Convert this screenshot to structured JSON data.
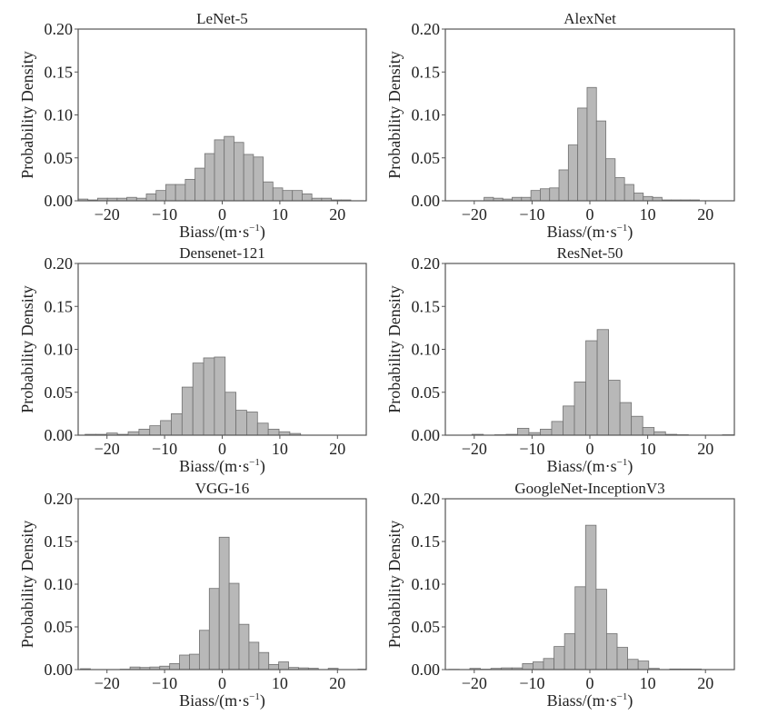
{
  "chart_data": [
    {
      "type": "bar",
      "title": "LeNet-5",
      "xlabel": "Biass/(m·s⁻¹)",
      "xlabel_base": "Biass/(m·s",
      "xlabel_sup": "−1",
      "xlabel_close": ")",
      "ylabel": "Probability Density",
      "xlim": [
        -25,
        25
      ],
      "ylim": [
        0,
        0.2
      ],
      "xticks": [
        -20,
        -10,
        0,
        10,
        20
      ],
      "xtick_labels": [
        "−20",
        "−10",
        "0",
        "10",
        "20"
      ],
      "yticks": [
        0,
        0.05,
        0.1,
        0.15,
        0.2
      ],
      "ytick_labels": [
        "0.00",
        "0.05",
        "0.10",
        "0.15",
        "0.20"
      ],
      "bin_start": -25.0,
      "bin_width": 1.69,
      "values": [
        0.002,
        0.001,
        0.003,
        0.003,
        0.003,
        0.004,
        0.003,
        0.008,
        0.012,
        0.019,
        0.019,
        0.025,
        0.038,
        0.055,
        0.071,
        0.075,
        0.068,
        0.054,
        0.051,
        0.022,
        0.015,
        0.012,
        0.012,
        0.008,
        0.003,
        0.003,
        0.001,
        0.001
      ]
    },
    {
      "type": "bar",
      "title": "AlexNet",
      "xlabel": "Biass/(m·s⁻¹)",
      "xlabel_base": "Biass/(m·s",
      "xlabel_sup": "−1",
      "xlabel_close": ")",
      "ylabel": "Probability Density",
      "xlim": [
        -25,
        25
      ],
      "ylim": [
        0,
        0.2
      ],
      "xticks": [
        -20,
        -10,
        0,
        10,
        20
      ],
      "xtick_labels": [
        "−20",
        "−10",
        "0",
        "10",
        "20"
      ],
      "yticks": [
        0,
        0.05,
        0.1,
        0.15,
        0.2
      ],
      "ytick_labels": [
        "0.00",
        "0.05",
        "0.10",
        "0.15",
        "0.20"
      ],
      "bin_start": -18.3,
      "bin_width": 1.62,
      "values": [
        0.004,
        0.003,
        0.002,
        0.004,
        0.004,
        0.012,
        0.014,
        0.015,
        0.036,
        0.065,
        0.108,
        0.132,
        0.093,
        0.049,
        0.027,
        0.019,
        0.009,
        0.005,
        0.004,
        0.001,
        0.001,
        0.001,
        0.001
      ]
    },
    {
      "type": "bar",
      "title": "Densenet-121",
      "xlabel": "Biass/(m·s⁻¹)",
      "xlabel_base": "Biass/(m·s",
      "xlabel_sup": "−1",
      "xlabel_close": ")",
      "ylabel": "Probability Density",
      "xlim": [
        -25,
        25
      ],
      "ylim": [
        0,
        0.2
      ],
      "xticks": [
        -20,
        -10,
        0,
        10,
        20
      ],
      "xtick_labels": [
        "−20",
        "−10",
        "0",
        "10",
        "20"
      ],
      "yticks": [
        0,
        0.05,
        0.1,
        0.15,
        0.2
      ],
      "ytick_labels": [
        "0.00",
        "0.05",
        "0.10",
        "0.15",
        "0.20"
      ],
      "bin_start": -23.8,
      "bin_width": 1.87,
      "values": [
        0.001,
        0.001,
        0.0025,
        0.001,
        0.004,
        0.007,
        0.011,
        0.017,
        0.025,
        0.056,
        0.084,
        0.09,
        0.091,
        0.05,
        0.029,
        0.027,
        0.014,
        0.007,
        0.004,
        0.002
      ]
    },
    {
      "type": "bar",
      "title": "ResNet-50",
      "xlabel": "Biass/(m·s⁻¹)",
      "xlabel_base": "Biass/(m·s",
      "xlabel_sup": "−1",
      "xlabel_close": ")",
      "ylabel": "Probability Density",
      "xlim": [
        -25,
        25
      ],
      "ylim": [
        0,
        0.2
      ],
      "xticks": [
        -20,
        -10,
        0,
        10,
        20
      ],
      "xtick_labels": [
        "−20",
        "−10",
        "0",
        "10",
        "20"
      ],
      "yticks": [
        0,
        0.05,
        0.1,
        0.15,
        0.2
      ],
      "ytick_labels": [
        "0.00",
        "0.05",
        "0.10",
        "0.15",
        "0.20"
      ],
      "bin_start": -20.4,
      "bin_width": 1.97,
      "values": [
        0.001,
        0,
        0.0005,
        0.001,
        0.008,
        0.003,
        0.007,
        0.016,
        0.034,
        0.062,
        0.11,
        0.123,
        0.064,
        0.038,
        0.022,
        0.009,
        0.004,
        0.001,
        0.0005,
        0,
        0,
        0,
        0.0005
      ]
    },
    {
      "type": "bar",
      "title": "VGG-16",
      "xlabel": "Biass/(m·s⁻¹)",
      "xlabel_base": "Biass/(m·s",
      "xlabel_sup": "−1",
      "xlabel_close": ")",
      "ylabel": "Probability Density",
      "xlim": [
        -25,
        25
      ],
      "ylim": [
        0,
        0.2
      ],
      "xticks": [
        -20,
        -10,
        0,
        10,
        20
      ],
      "xtick_labels": [
        "−20",
        "−10",
        "0",
        "10",
        "20"
      ],
      "yticks": [
        0,
        0.05,
        0.1,
        0.15,
        0.2
      ],
      "ytick_labels": [
        "0.00",
        "0.05",
        "0.10",
        "0.15",
        "0.20"
      ],
      "bin_start": -24.6,
      "bin_width": 1.72,
      "values": [
        0.001,
        0,
        0,
        0,
        0.0004,
        0.003,
        0.0025,
        0.003,
        0.004,
        0.007,
        0.017,
        0.018,
        0.046,
        0.095,
        0.155,
        0.101,
        0.053,
        0.032,
        0.02,
        0.006,
        0.009,
        0.0025,
        0.002,
        0.0015,
        0,
        0.0015,
        0,
        0,
        0.0005
      ]
    },
    {
      "type": "bar",
      "title": "GoogleNet-InceptionV3",
      "xlabel": "Biass/(m·s⁻¹)",
      "xlabel_base": "Biass/(m·s",
      "xlabel_sup": "−1",
      "xlabel_close": ")",
      "ylabel": "Probability Density",
      "xlim": [
        -25,
        25
      ],
      "ylim": [
        0,
        0.2
      ],
      "xticks": [
        -20,
        -10,
        0,
        10,
        20
      ],
      "xtick_labels": [
        "−20",
        "−10",
        "0",
        "10",
        "20"
      ],
      "yticks": [
        0,
        0.05,
        0.1,
        0.15,
        0.2
      ],
      "ytick_labels": [
        "0.00",
        "0.05",
        "0.10",
        "0.15",
        "0.20"
      ],
      "bin_start": -24.4,
      "bin_width": 1.82,
      "values": [
        0.0003,
        0,
        0.0014,
        0.0004,
        0.0014,
        0.002,
        0.002,
        0.007,
        0.009,
        0.013,
        0.027,
        0.042,
        0.097,
        0.169,
        0.094,
        0.042,
        0.026,
        0.012,
        0.01,
        0.0014,
        0,
        0.0007,
        0.0007,
        0.0007
      ]
    }
  ],
  "colors": {
    "bar_fill": "#b8b8b8",
    "bar_edge": "#707070",
    "axis": "#555555",
    "text": "#222222"
  }
}
